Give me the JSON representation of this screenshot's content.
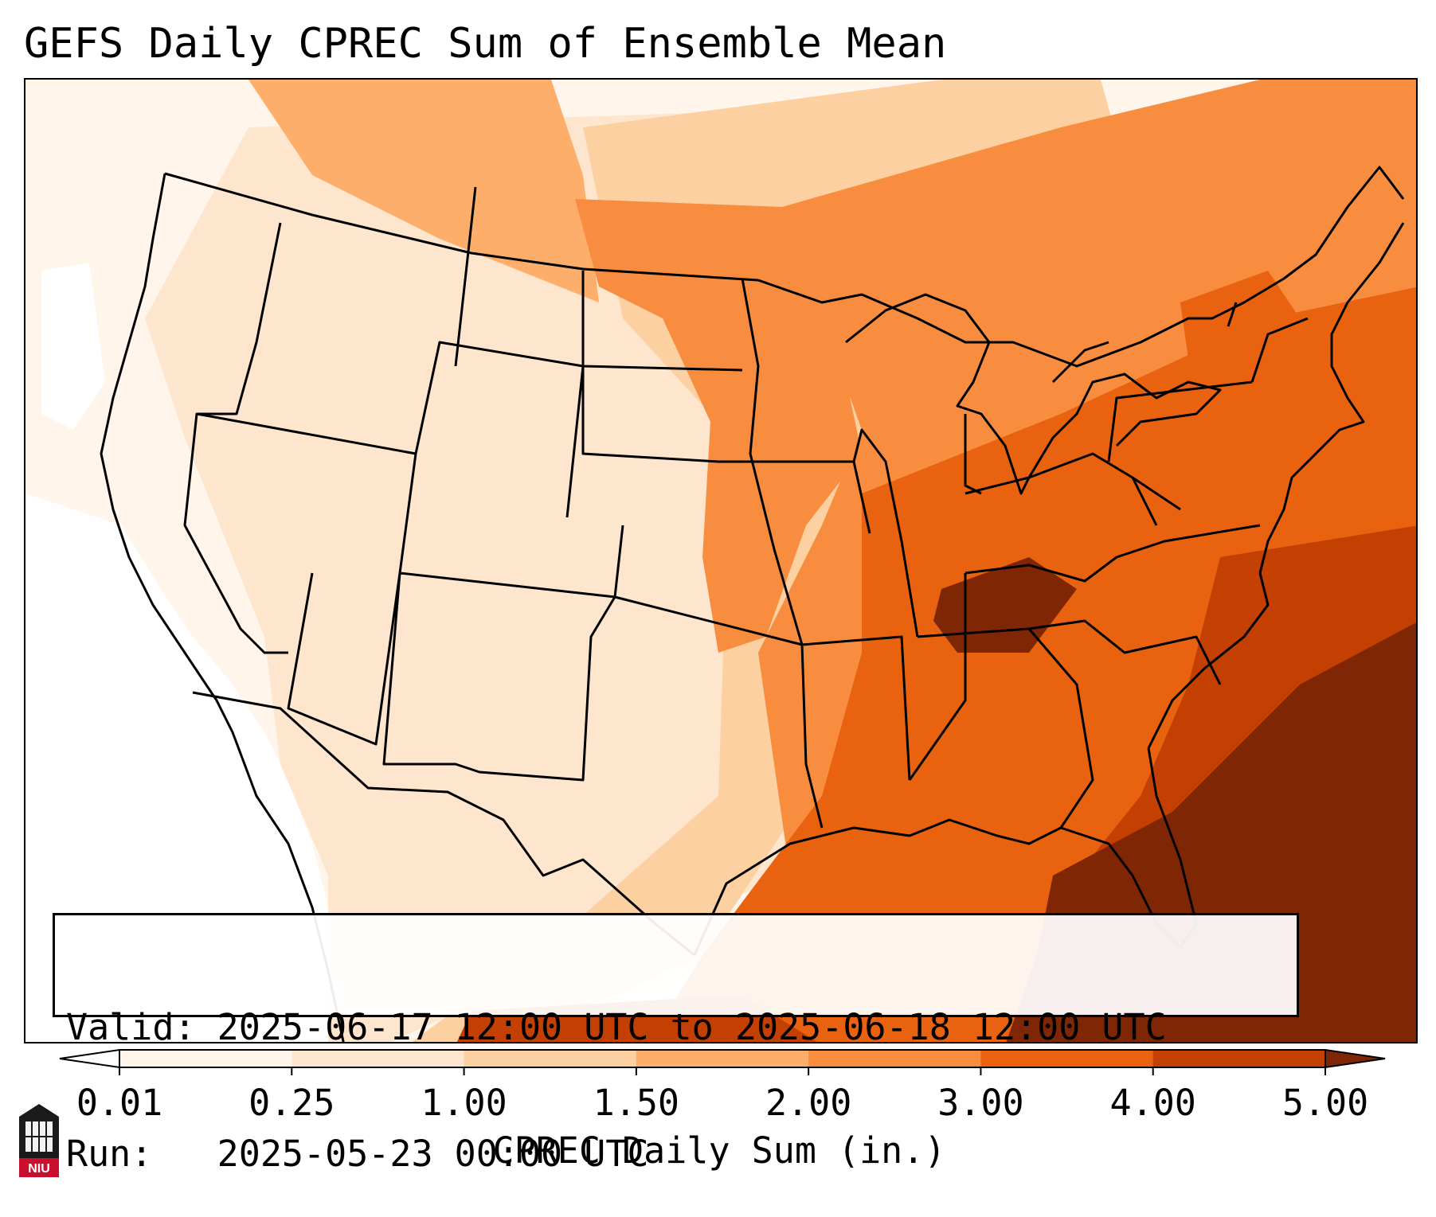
{
  "title": "GEFS Daily CPREC Sum of Ensemble Mean",
  "info": {
    "valid": "Valid: 2025-06-17 12:00 UTC to 2025-06-18 12:00 UTC",
    "run": "Run:   2025-05-23 00:00 UTC"
  },
  "colorbar": {
    "label": "CPREC Daily Sum (in.)",
    "ticks": [
      "0.01",
      "0.25",
      "1.00",
      "1.50",
      "2.00",
      "3.00",
      "4.00",
      "5.00"
    ],
    "bin_colors": [
      "#fff5eb",
      "#fee6ce",
      "#fdd0a2",
      "#fdae6b",
      "#f88d3f",
      "#e8620f",
      "#c44002"
    ],
    "under_color": "#ffffff",
    "over_color": "#7f2704"
  },
  "legend_colors": {
    "lt_0.01": "#ffffff",
    "0.01_0.25": "#fff5eb",
    "0.25_1.00": "#fee6ce",
    "1.00_1.50": "#fdd0a2",
    "1.50_2.00": "#fdae6b",
    "2.00_3.00": "#f88d3f",
    "3.00_4.00": "#e8620f",
    "4.00_5.00": "#c44002",
    "gt_5.00": "#7f2704"
  },
  "logo": {
    "text": "NIU",
    "color": "#c8102e"
  }
}
